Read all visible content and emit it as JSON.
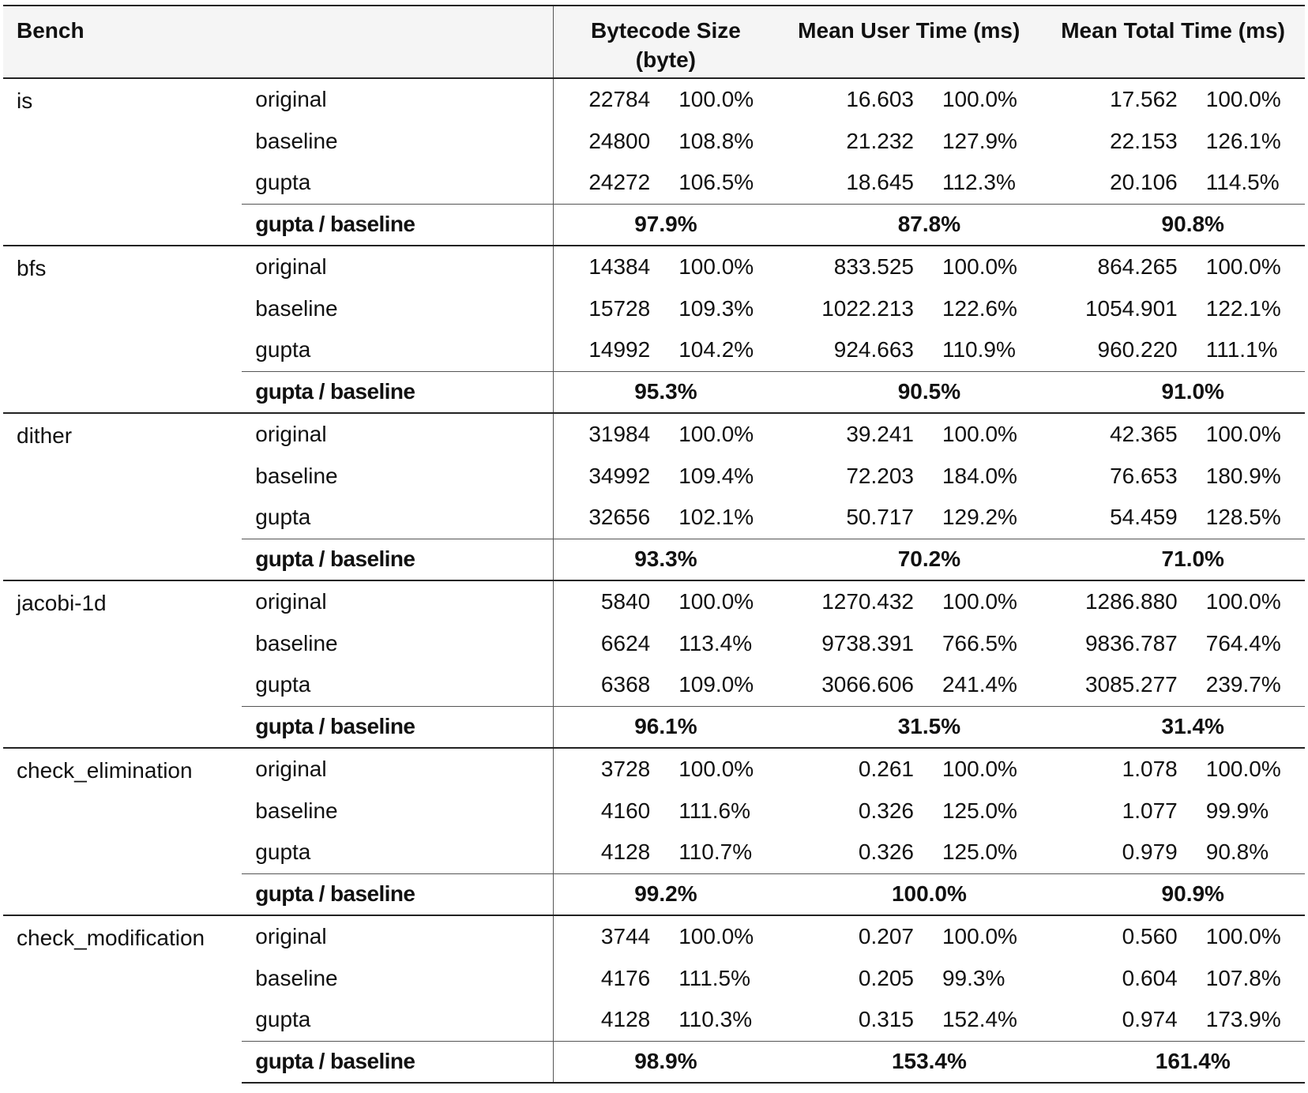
{
  "headers": {
    "bench": "Bench",
    "bytecode_size": "Bytecode Size (byte)",
    "mean_user_time": "Mean User Time (ms)",
    "mean_total_time": "Mean Total Time (ms)"
  },
  "ratio_label": "gupta / baseline",
  "benches": [
    {
      "name": "is",
      "rows": [
        {
          "variant": "original",
          "size": "22784",
          "size_pct": "100.0%",
          "user": "16.603",
          "user_pct": "100.0%",
          "total": "17.562",
          "total_pct": "100.0%"
        },
        {
          "variant": "baseline",
          "size": "24800",
          "size_pct": "108.8%",
          "user": "21.232",
          "user_pct": "127.9%",
          "total": "22.153",
          "total_pct": "126.1%"
        },
        {
          "variant": "gupta",
          "size": "24272",
          "size_pct": "106.5%",
          "user": "18.645",
          "user_pct": "112.3%",
          "total": "20.106",
          "total_pct": "114.5%"
        }
      ],
      "ratio": {
        "size": "97.9%",
        "user": "87.8%",
        "total": "90.8%"
      }
    },
    {
      "name": "bfs",
      "rows": [
        {
          "variant": "original",
          "size": "14384",
          "size_pct": "100.0%",
          "user": "833.525",
          "user_pct": "100.0%",
          "total": "864.265",
          "total_pct": "100.0%"
        },
        {
          "variant": "baseline",
          "size": "15728",
          "size_pct": "109.3%",
          "user": "1022.213",
          "user_pct": "122.6%",
          "total": "1054.901",
          "total_pct": "122.1%"
        },
        {
          "variant": "gupta",
          "size": "14992",
          "size_pct": "104.2%",
          "user": "924.663",
          "user_pct": "110.9%",
          "total": "960.220",
          "total_pct": "111.1%"
        }
      ],
      "ratio": {
        "size": "95.3%",
        "user": "90.5%",
        "total": "91.0%"
      }
    },
    {
      "name": "dither",
      "rows": [
        {
          "variant": "original",
          "size": "31984",
          "size_pct": "100.0%",
          "user": "39.241",
          "user_pct": "100.0%",
          "total": "42.365",
          "total_pct": "100.0%"
        },
        {
          "variant": "baseline",
          "size": "34992",
          "size_pct": "109.4%",
          "user": "72.203",
          "user_pct": "184.0%",
          "total": "76.653",
          "total_pct": "180.9%"
        },
        {
          "variant": "gupta",
          "size": "32656",
          "size_pct": "102.1%",
          "user": "50.717",
          "user_pct": "129.2%",
          "total": "54.459",
          "total_pct": "128.5%"
        }
      ],
      "ratio": {
        "size": "93.3%",
        "user": "70.2%",
        "total": "71.0%"
      }
    },
    {
      "name": "jacobi-1d",
      "rows": [
        {
          "variant": "original",
          "size": "5840",
          "size_pct": "100.0%",
          "user": "1270.432",
          "user_pct": "100.0%",
          "total": "1286.880",
          "total_pct": "100.0%"
        },
        {
          "variant": "baseline",
          "size": "6624",
          "size_pct": "113.4%",
          "user": "9738.391",
          "user_pct": "766.5%",
          "total": "9836.787",
          "total_pct": "764.4%"
        },
        {
          "variant": "gupta",
          "size": "6368",
          "size_pct": "109.0%",
          "user": "3066.606",
          "user_pct": "241.4%",
          "total": "3085.277",
          "total_pct": "239.7%"
        }
      ],
      "ratio": {
        "size": "96.1%",
        "user": "31.5%",
        "total": "31.4%"
      }
    },
    {
      "name": "check_elimination",
      "rows": [
        {
          "variant": "original",
          "size": "3728",
          "size_pct": "100.0%",
          "user": "0.261",
          "user_pct": "100.0%",
          "total": "1.078",
          "total_pct": "100.0%"
        },
        {
          "variant": "baseline",
          "size": "4160",
          "size_pct": "111.6%",
          "user": "0.326",
          "user_pct": "125.0%",
          "total": "1.077",
          "total_pct": "99.9%"
        },
        {
          "variant": "gupta",
          "size": "4128",
          "size_pct": "110.7%",
          "user": "0.326",
          "user_pct": "125.0%",
          "total": "0.979",
          "total_pct": "90.8%"
        }
      ],
      "ratio": {
        "size": "99.2%",
        "user": "100.0%",
        "total": "90.9%"
      }
    },
    {
      "name": "check_modification",
      "rows": [
        {
          "variant": "original",
          "size": "3744",
          "size_pct": "100.0%",
          "user": "0.207",
          "user_pct": "100.0%",
          "total": "0.560",
          "total_pct": "100.0%"
        },
        {
          "variant": "baseline",
          "size": "4176",
          "size_pct": "111.5%",
          "user": "0.205",
          "user_pct": "99.3%",
          "total": "0.604",
          "total_pct": "107.8%"
        },
        {
          "variant": "gupta",
          "size": "4128",
          "size_pct": "110.3%",
          "user": "0.315",
          "user_pct": "152.4%",
          "total": "0.974",
          "total_pct": "173.9%"
        }
      ],
      "ratio": {
        "size": "98.9%",
        "user": "153.4%",
        "total": "161.4%"
      }
    }
  ]
}
